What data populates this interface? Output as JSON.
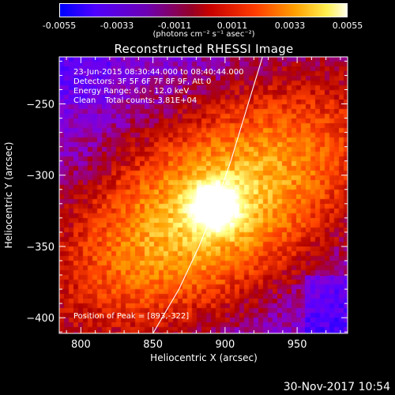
{
  "chart_data": {
    "type": "heatmap",
    "title": "Reconstructed RHESSI Image",
    "xlabel": "Heliocentric X (arcsec)",
    "ylabel": "Heliocentric Y (arcsec)",
    "xlim": [
      785,
      985
    ],
    "ylim": [
      -411,
      -217
    ],
    "x_ticks": [
      800,
      850,
      900,
      950
    ],
    "y_ticks": [
      -250,
      -300,
      -350,
      -400
    ],
    "colorbar": {
      "min": -0.0055,
      "max": 0.0055,
      "ticks": [
        "-0.0055",
        "-0.0033",
        "-0.0011",
        "0.0011",
        "0.0033",
        "0.0055"
      ],
      "unit_label": "(photons cm⁻² s⁻¹ asec⁻²)",
      "colormap": [
        "#0000ff",
        "#5a00ff",
        "#8a00d0",
        "#b00000",
        "#ff4000",
        "#ffa000",
        "#ffff80",
        "#ffffff"
      ]
    },
    "annotations": {
      "time_range": "23-Jun-2015 08:30:44.000 to 08:40:44.000",
      "detectors": "Detectors: 3F 5F 6F 7F 8F 9F, Att 0",
      "energy": "Energy Range: 6.0 - 12.0 keV",
      "algorithm": "Clean",
      "total_counts": "Total counts: 3.81E+04",
      "peak": "Position of Peak = [893,-322]"
    },
    "peak": {
      "x": 893,
      "y": -322
    },
    "limb_curve": [
      [
        850,
        -411
      ],
      [
        868,
        -380
      ],
      [
        882,
        -350
      ],
      [
        893,
        -322
      ],
      [
        904,
        -290
      ],
      [
        916,
        -250
      ],
      [
        926,
        -217
      ]
    ],
    "grid": false
  },
  "timestamp": "30-Nov-2017 10:54"
}
